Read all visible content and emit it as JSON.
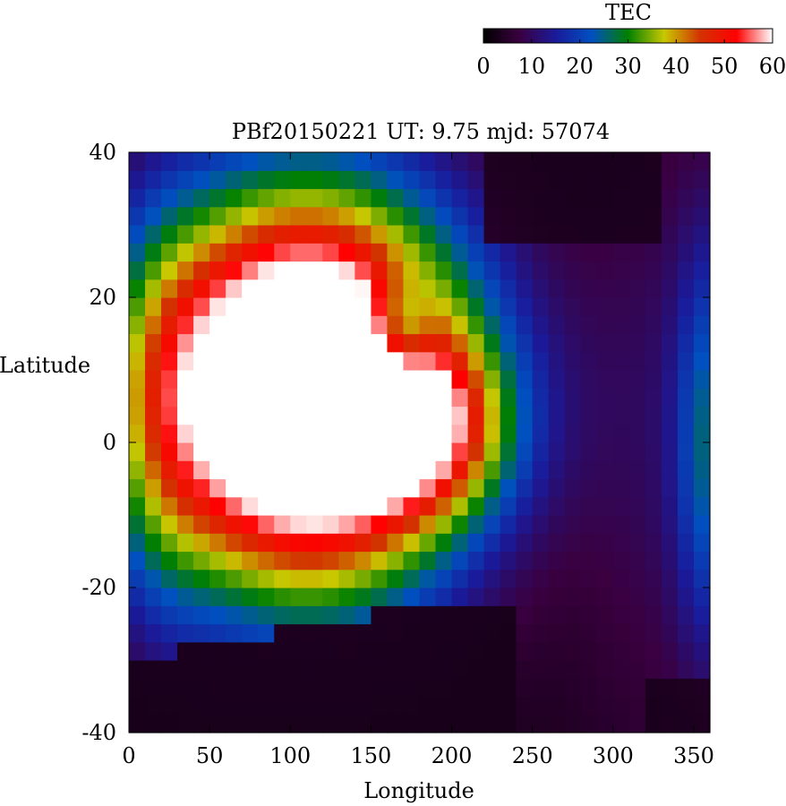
{
  "chart_data": {
    "type": "heatmap",
    "title": "PBf20150221  UT: 9.75  mjd: 57074",
    "xlabel": "Longitude",
    "ylabel": "Latitude",
    "xlim": [
      0,
      360
    ],
    "ylim": [
      -40,
      40
    ],
    "xticks": [
      "0",
      "50",
      "100",
      "150",
      "200",
      "250",
      "300",
      "350"
    ],
    "yticks": [
      "40",
      "20",
      "0",
      "-20",
      "-40"
    ],
    "grid": false,
    "colorbar": {
      "label": "TEC",
      "range": [
        0,
        60
      ],
      "ticks": [
        "0",
        "10",
        "20",
        "30",
        "40",
        "50",
        "60"
      ],
      "placement": "top-right",
      "colormap": [
        "#000000",
        "#3a0040",
        "#1a1a9a",
        "#0050c0",
        "#008000",
        "#c8c800",
        "#d23200",
        "#ff0000",
        "#ffffff"
      ]
    },
    "grid_shape": {
      "lon_step_deg": 10,
      "lat_step_deg": 2.5
    }
  }
}
